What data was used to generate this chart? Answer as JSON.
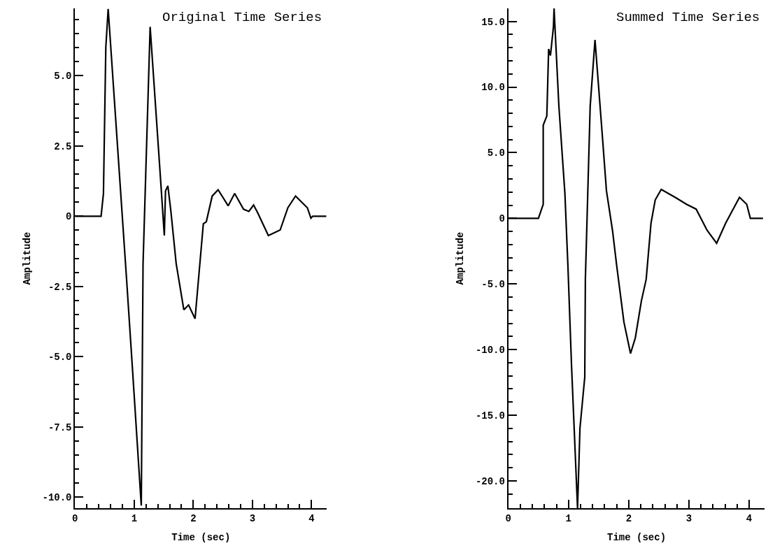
{
  "chart_data": [
    {
      "type": "line",
      "title": "Original Time Series",
      "xlabel": "Time (sec)",
      "ylabel": "Amplitude",
      "marker": "none",
      "line_style": "solid",
      "xlim": [
        0,
        4.26
      ],
      "ylim": [
        -10.4,
        7.4
      ],
      "xticks": [
        0,
        {
          "value": 0.2,
          "label": null
        },
        {
          "value": 0.4,
          "label": null
        },
        {
          "value": 0.6,
          "label": null
        },
        {
          "value": 0.8,
          "label": null
        },
        1,
        {
          "value": 1.2,
          "label": null
        },
        {
          "value": 1.4,
          "label": null
        },
        {
          "value": 1.6,
          "label": null
        },
        {
          "value": 1.8,
          "label": null
        },
        2,
        {
          "value": 2.2,
          "label": null
        },
        {
          "value": 2.4,
          "label": null
        },
        {
          "value": 2.6,
          "label": null
        },
        {
          "value": 2.8,
          "label": null
        },
        3,
        {
          "value": 3.2,
          "label": null
        },
        {
          "value": 3.4,
          "label": null
        },
        {
          "value": 3.6,
          "label": null
        },
        {
          "value": 3.8,
          "label": null
        },
        4
      ],
      "yticks": [
        {
          "value": -10,
          "label": "-10.0"
        },
        {
          "value": -9.5,
          "label": null
        },
        {
          "value": -9,
          "label": null
        },
        {
          "value": -8.5,
          "label": null
        },
        {
          "value": -8,
          "label": null
        },
        {
          "value": -7.5,
          "label": "-7.5"
        },
        {
          "value": -7,
          "label": null
        },
        {
          "value": -6.5,
          "label": null
        },
        {
          "value": -6,
          "label": null
        },
        {
          "value": -5.5,
          "label": null
        },
        {
          "value": -5,
          "label": "-5.0"
        },
        {
          "value": -4.5,
          "label": null
        },
        {
          "value": -4,
          "label": null
        },
        {
          "value": -3.5,
          "label": null
        },
        {
          "value": -3,
          "label": null
        },
        -2.5,
        {
          "value": -2,
          "label": null
        },
        {
          "value": -1.5,
          "label": null
        },
        {
          "value": -1,
          "label": null
        },
        {
          "value": -0.5,
          "label": null
        },
        0,
        {
          "value": 0.5,
          "label": null
        },
        {
          "value": 1,
          "label": null
        },
        {
          "value": 1.5,
          "label": null
        },
        {
          "value": 2,
          "label": null
        },
        2.5,
        {
          "value": 3,
          "label": null
        },
        {
          "value": 3.5,
          "label": null
        },
        {
          "value": 4,
          "label": null
        },
        {
          "value": 4.5,
          "label": null
        },
        {
          "value": 5,
          "label": "5.0"
        },
        {
          "value": 5.5,
          "label": null
        },
        {
          "value": 6,
          "label": null
        },
        {
          "value": 6.5,
          "label": null
        },
        {
          "value": 7,
          "label": null
        }
      ],
      "series": [
        {
          "color": "#000000",
          "x": [
            0,
            0.44,
            0.48,
            0.52,
            0.56,
            0.87,
            0.97,
            1.12,
            1.15,
            1.27,
            1.45,
            1.51,
            1.53,
            1.57,
            1.62,
            1.71,
            1.84,
            1.92,
            2.03,
            2.17,
            2.22,
            2.32,
            2.42,
            2.59,
            2.7,
            2.85,
            2.94,
            3.02,
            3.09,
            3.27,
            3.47,
            3.6,
            3.73,
            3.93,
            3.99,
            4.02,
            4.25
          ],
          "values": [
            0,
            0,
            0.8,
            6.0,
            7.38,
            -2.2,
            -5.4,
            -10.3,
            -1.7,
            6.74,
            1.2,
            -0.69,
            0.9,
            1.08,
            0.2,
            -1.68,
            -3.33,
            -3.16,
            -3.65,
            -0.27,
            -0.2,
            0.72,
            0.94,
            0.37,
            0.81,
            0.25,
            0.17,
            0.4,
            0.12,
            -0.69,
            -0.49,
            0.3,
            0.72,
            0.3,
            -0.07,
            0,
            0
          ]
        }
      ]
    },
    {
      "type": "line",
      "title": "Summed Time Series",
      "xlabel": "Time (sec)",
      "ylabel": "Amplitude",
      "marker": "none",
      "line_style": "solid",
      "xlim": [
        0,
        4.26
      ],
      "ylim": [
        -22.1,
        16.0
      ],
      "xticks": [
        0,
        {
          "value": 0.2,
          "label": null
        },
        {
          "value": 0.4,
          "label": null
        },
        {
          "value": 0.6,
          "label": null
        },
        {
          "value": 0.8,
          "label": null
        },
        1,
        {
          "value": 1.2,
          "label": null
        },
        {
          "value": 1.4,
          "label": null
        },
        {
          "value": 1.6,
          "label": null
        },
        {
          "value": 1.8,
          "label": null
        },
        2,
        {
          "value": 2.2,
          "label": null
        },
        {
          "value": 2.4,
          "label": null
        },
        {
          "value": 2.6,
          "label": null
        },
        {
          "value": 2.8,
          "label": null
        },
        3,
        {
          "value": 3.2,
          "label": null
        },
        {
          "value": 3.4,
          "label": null
        },
        {
          "value": 3.6,
          "label": null
        },
        {
          "value": 3.8,
          "label": null
        },
        4
      ],
      "yticks": [
        {
          "value": -21,
          "label": null
        },
        {
          "value": -20,
          "label": "-20.0"
        },
        {
          "value": -19,
          "label": null
        },
        {
          "value": -18,
          "label": null
        },
        {
          "value": -17,
          "label": null
        },
        {
          "value": -16,
          "label": null
        },
        {
          "value": -15,
          "label": "-15.0"
        },
        {
          "value": -14,
          "label": null
        },
        {
          "value": -13,
          "label": null
        },
        {
          "value": -12,
          "label": null
        },
        {
          "value": -11,
          "label": null
        },
        {
          "value": -10,
          "label": "-10.0"
        },
        {
          "value": -9,
          "label": null
        },
        {
          "value": -8,
          "label": null
        },
        {
          "value": -7,
          "label": null
        },
        {
          "value": -6,
          "label": null
        },
        {
          "value": -5,
          "label": "-5.0"
        },
        {
          "value": -4,
          "label": null
        },
        {
          "value": -3,
          "label": null
        },
        {
          "value": -2,
          "label": null
        },
        {
          "value": -1,
          "label": null
        },
        0,
        {
          "value": 1,
          "label": null
        },
        {
          "value": 2,
          "label": null
        },
        {
          "value": 3,
          "label": null
        },
        {
          "value": 4,
          "label": null
        },
        {
          "value": 5,
          "label": "5.0"
        },
        {
          "value": 6,
          "label": null
        },
        {
          "value": 7,
          "label": null
        },
        {
          "value": 8,
          "label": null
        },
        {
          "value": 9,
          "label": null
        },
        {
          "value": 10,
          "label": "10.0"
        },
        {
          "value": 11,
          "label": null
        },
        {
          "value": 12,
          "label": null
        },
        {
          "value": 13,
          "label": null
        },
        {
          "value": 14,
          "label": null
        },
        {
          "value": 15,
          "label": "15.0"
        }
      ],
      "series": [
        {
          "color": "#000000",
          "x": [
            0,
            0.5,
            0.58,
            0.58,
            0.64,
            0.67,
            0.7,
            0.75,
            0.76,
            0.84,
            0.94,
            0.99,
            1.05,
            1.15,
            1.19,
            1.27,
            1.28,
            1.36,
            1.44,
            1.56,
            1.63,
            1.73,
            1.8,
            1.92,
            2.03,
            2.11,
            2.21,
            2.29,
            2.37,
            2.44,
            2.54,
            2.77,
            2.96,
            3.12,
            3.3,
            3.46,
            3.61,
            3.84,
            3.96,
            4.02,
            4.23
          ],
          "values": [
            0,
            0,
            1.07,
            7.1,
            7.8,
            12.9,
            12.4,
            14.6,
            16.0,
            8.55,
            1.9,
            -3.6,
            -11.2,
            -22.1,
            -16.0,
            -12.1,
            -4.65,
            8.55,
            13.6,
            6.4,
            2.1,
            -0.9,
            -3.6,
            -7.9,
            -10.3,
            -9.1,
            -6.3,
            -4.65,
            -0.37,
            1.4,
            2.2,
            1.6,
            1.07,
            0.7,
            -0.9,
            -1.9,
            -0.37,
            1.6,
            1.07,
            0,
            0
          ]
        }
      ]
    }
  ]
}
